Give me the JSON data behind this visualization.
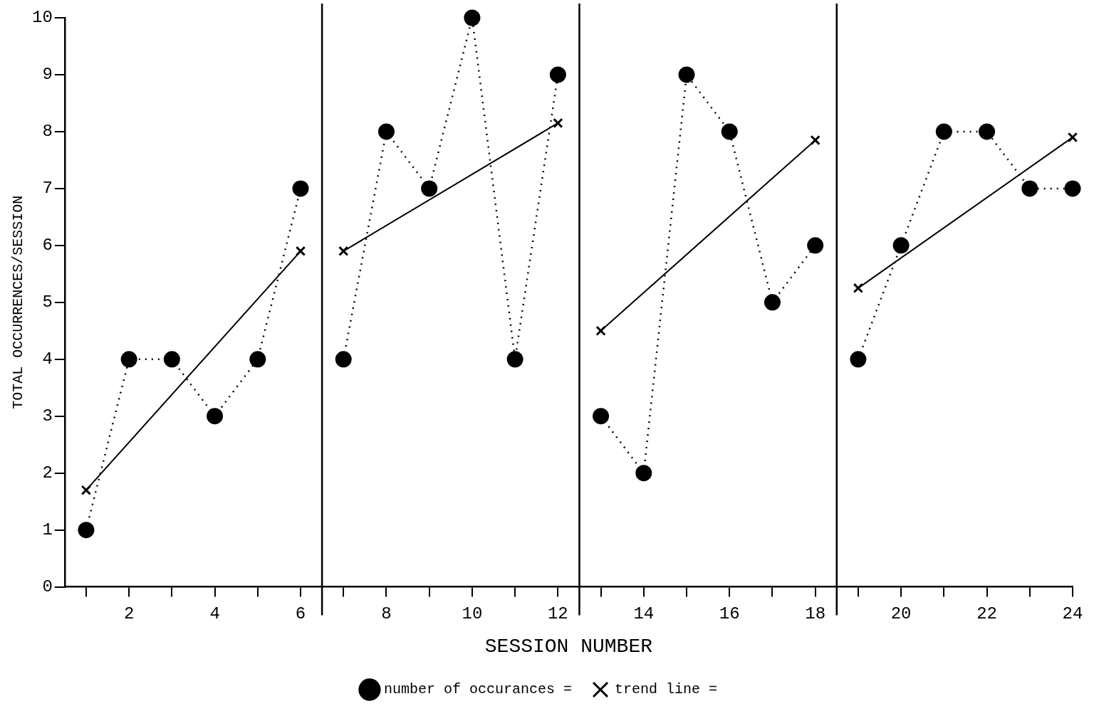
{
  "chart_data": {
    "type": "line",
    "xlabel": "SESSION NUMBER",
    "ylabel": "TOTAL OCCURRENCES/SESSION",
    "xlim": [
      0.5,
      24
    ],
    "xticks": [
      {
        "value": 1,
        "label": null
      },
      2,
      {
        "value": 3,
        "label": null
      },
      4,
      {
        "value": 5,
        "label": null
      },
      6,
      {
        "value": 7,
        "label": null
      },
      8,
      {
        "value": 9,
        "label": null
      },
      10,
      {
        "value": 11,
        "label": null
      },
      12,
      {
        "value": 13,
        "label": null
      },
      14,
      {
        "value": 15,
        "label": null
      },
      16,
      {
        "value": 17,
        "label": null
      },
      18,
      {
        "value": 19,
        "label": null
      },
      20,
      {
        "value": 21,
        "label": null
      },
      22,
      {
        "value": 23,
        "label": null
      },
      24
    ],
    "ylim": [
      0,
      10
    ],
    "yticks": [
      0,
      1,
      2,
      3,
      4,
      5,
      6,
      7,
      8,
      9,
      10
    ],
    "series": [
      {
        "name": "number of occurances =",
        "color": "#000000",
        "marker": "circle",
        "line_style": "dotted",
        "x": [
          1,
          2,
          3,
          4,
          5,
          6,
          6.5,
          7,
          8,
          9,
          10,
          11,
          12,
          12.5,
          13,
          14,
          15,
          16,
          17,
          18,
          18.5,
          19,
          20,
          21,
          22,
          23,
          24
        ],
        "values": [
          1,
          4,
          4,
          3,
          4,
          7,
          null,
          4,
          8,
          7,
          10,
          4,
          9,
          null,
          3,
          2,
          9,
          8,
          5,
          6,
          null,
          4,
          6,
          8,
          8,
          7,
          7
        ]
      },
      {
        "name": "trend line =",
        "color": "#000000",
        "marker": "cross",
        "line_style": "solid",
        "x": [
          1,
          6,
          6.5,
          7,
          12,
          12.5,
          13,
          18,
          18.5,
          19,
          24
        ],
        "values": [
          1.7,
          5.9,
          null,
          5.9,
          8.15,
          null,
          4.5,
          7.85,
          null,
          5.25,
          7.9
        ]
      }
    ],
    "ref_lines": [
      {
        "axis": "x",
        "value": 6.5,
        "color": "#000000"
      },
      {
        "axis": "x",
        "value": 12.5,
        "color": "#000000"
      },
      {
        "axis": "x",
        "value": 18.5,
        "color": "#000000"
      }
    ],
    "legend": "bottom",
    "grid": false
  }
}
